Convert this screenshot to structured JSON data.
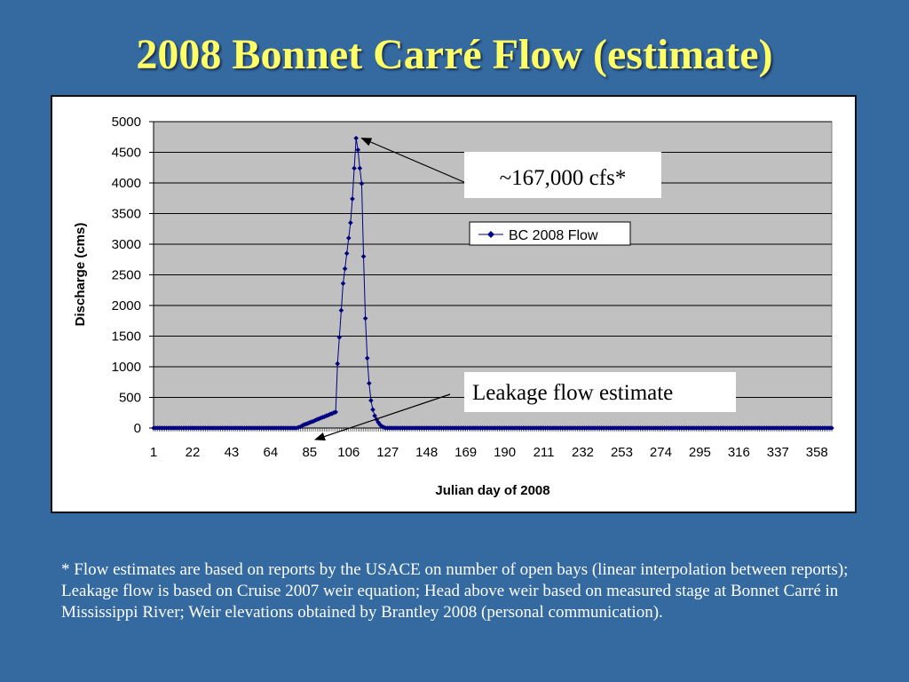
{
  "slide": {
    "title": "2008 Bonnet Carré Flow (estimate)",
    "footnote": "* Flow estimates are based on reports by the USACE on number of open bays (linear interpolation between reports); Leakage flow is based on Cruise 2007 weir equation; Head above weir based on measured stage at Bonnet Carré in Mississippi River; Weir elevations obtained by Brantley 2008 (personal communication)."
  },
  "colors": {
    "background": "#346aa0",
    "title": "#ffff66",
    "plot_area": "#c0c0c0",
    "series": "#000080"
  },
  "chart_data": {
    "type": "line",
    "xlabel": "Julian day of 2008",
    "ylabel": "Discharge (cms)",
    "xlim": [
      1,
      366
    ],
    "ylim": [
      0,
      5000
    ],
    "y_ticks": [
      0,
      500,
      1000,
      1500,
      2000,
      2500,
      3000,
      3500,
      4000,
      4500,
      5000
    ],
    "x_tick_labels": [
      1,
      22,
      43,
      64,
      85,
      106,
      127,
      148,
      169,
      190,
      211,
      232,
      253,
      274,
      295,
      316,
      337,
      358
    ],
    "grid": "horizontal",
    "legend": {
      "position": "upper-right",
      "entries": [
        "BC 2008 Flow"
      ]
    },
    "annotations": [
      {
        "text": "~167,000 cfs*",
        "target_x": 113,
        "target_y": 4730
      },
      {
        "text": "Leakage flow estimate",
        "target_x": 89,
        "target_y": 0
      }
    ],
    "series": [
      {
        "name": "BC 2008 Flow",
        "marker": "diamond",
        "color": "#000080",
        "points": [
          [
            78,
            0
          ],
          [
            79,
            10
          ],
          [
            80,
            20
          ],
          [
            81,
            40
          ],
          [
            82,
            55
          ],
          [
            83,
            65
          ],
          [
            84,
            75
          ],
          [
            85,
            90
          ],
          [
            86,
            100
          ],
          [
            87,
            110
          ],
          [
            88,
            125
          ],
          [
            89,
            140
          ],
          [
            90,
            150
          ],
          [
            91,
            165
          ],
          [
            92,
            175
          ],
          [
            93,
            185
          ],
          [
            94,
            200
          ],
          [
            95,
            210
          ],
          [
            96,
            225
          ],
          [
            97,
            235
          ],
          [
            98,
            250
          ],
          [
            99,
            260
          ],
          [
            100,
            1050
          ],
          [
            101,
            1480
          ],
          [
            102,
            1920
          ],
          [
            103,
            2360
          ],
          [
            104,
            2600
          ],
          [
            105,
            2850
          ],
          [
            106,
            3100
          ],
          [
            107,
            3350
          ],
          [
            108,
            3740
          ],
          [
            109,
            4240
          ],
          [
            110,
            4730
          ],
          [
            111,
            4540
          ],
          [
            112,
            4240
          ],
          [
            113,
            3990
          ],
          [
            114,
            2800
          ],
          [
            115,
            1790
          ],
          [
            116,
            1140
          ],
          [
            117,
            730
          ],
          [
            118,
            450
          ],
          [
            119,
            300
          ],
          [
            120,
            200
          ],
          [
            121,
            140
          ],
          [
            122,
            90
          ],
          [
            123,
            50
          ],
          [
            124,
            25
          ],
          [
            125,
            10
          ],
          [
            126,
            0
          ]
        ]
      }
    ]
  }
}
